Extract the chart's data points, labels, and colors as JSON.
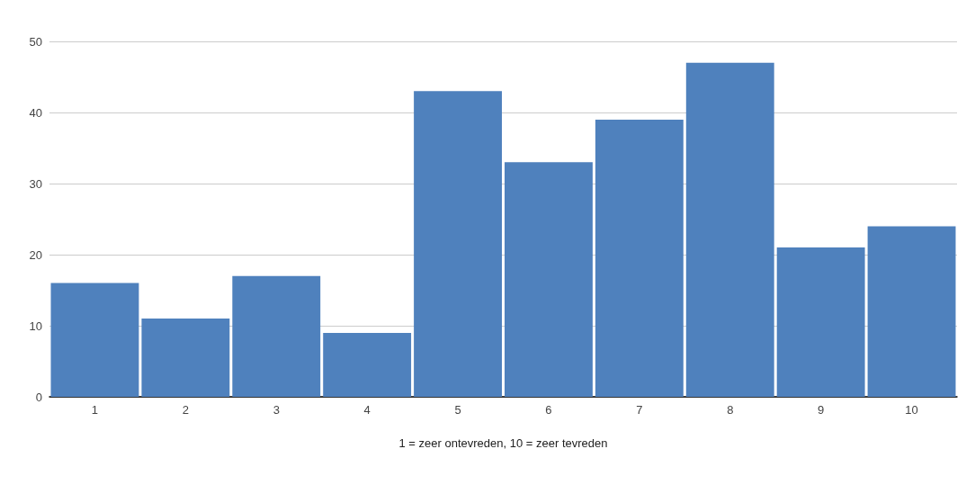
{
  "chart_data": {
    "type": "bar",
    "xlabel": "1 = zeer ontevreden, 10 = zeer tevreden",
    "categories": [
      "1",
      "2",
      "3",
      "4",
      "5",
      "6",
      "7",
      "8",
      "9",
      "10"
    ],
    "values": [
      16,
      11,
      17,
      9,
      43,
      33,
      39,
      47,
      21,
      24
    ],
    "color": "#4f81bd",
    "ylim": [
      0,
      50
    ],
    "yticks": [
      0,
      10,
      20,
      30,
      40,
      50
    ],
    "grid": "y"
  }
}
